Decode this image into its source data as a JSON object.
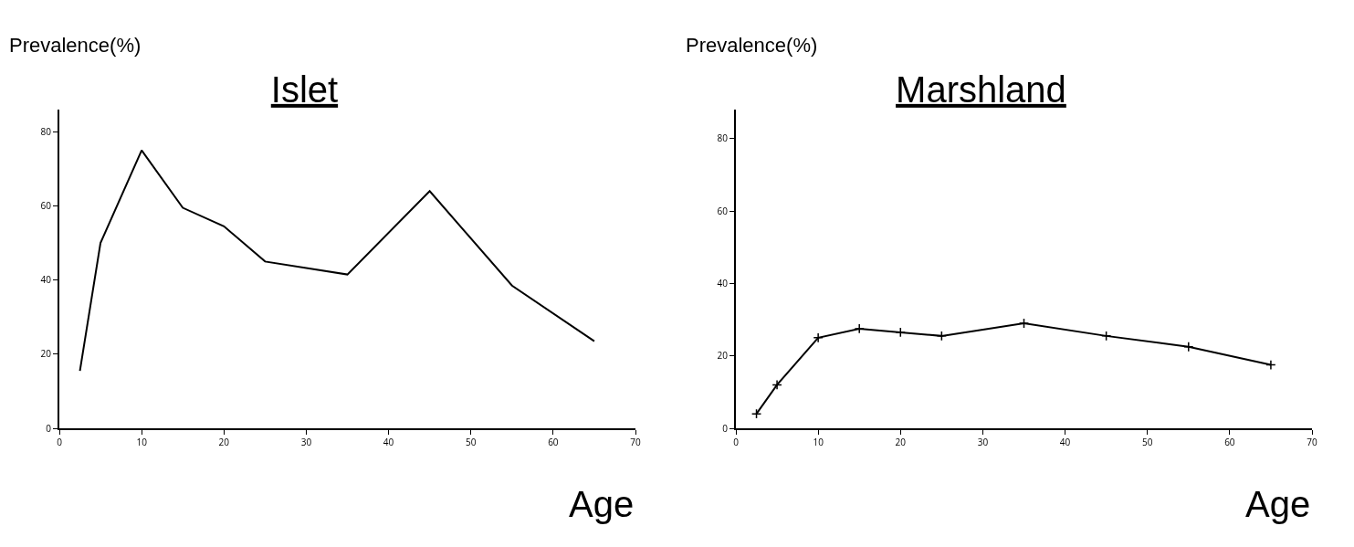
{
  "chart_data": [
    {
      "type": "line",
      "title": "Islet",
      "ylabel": "Prevalence(%)",
      "xlabel": "Age",
      "x": [
        2.5,
        5,
        10,
        15,
        20,
        25,
        35,
        45,
        55,
        65
      ],
      "series": [
        {
          "color": "#000000",
          "values": [
            15.5,
            50,
            75,
            59.5,
            54.5,
            45,
            41.5,
            64,
            38.5,
            23.5
          ]
        }
      ],
      "xlim": [
        0,
        70
      ],
      "xticks": [
        0,
        10,
        20,
        30,
        40,
        50,
        60,
        70
      ],
      "ylim": [
        0,
        86
      ],
      "yticks": [
        0,
        20,
        40,
        60,
        80
      ],
      "grid": false,
      "marker": "none",
      "line_style": "solid"
    },
    {
      "type": "line",
      "title": "Marshland",
      "ylabel": "Prevalence(%)",
      "xlabel": "Age",
      "x": [
        2.5,
        5,
        10,
        15,
        20,
        25,
        35,
        45,
        55,
        65
      ],
      "series": [
        {
          "color": "#000000",
          "values": [
            4,
            12,
            25,
            27.5,
            26.5,
            25.5,
            29,
            25.5,
            22.5,
            17.5
          ]
        }
      ],
      "xlim": [
        0,
        70
      ],
      "xticks": [
        0,
        10,
        20,
        30,
        40,
        50,
        60,
        70
      ],
      "ylim": [
        0,
        88
      ],
      "yticks": [
        0,
        20,
        40,
        60,
        80
      ],
      "grid": false,
      "marker": "cross",
      "line_style": "solid"
    }
  ]
}
